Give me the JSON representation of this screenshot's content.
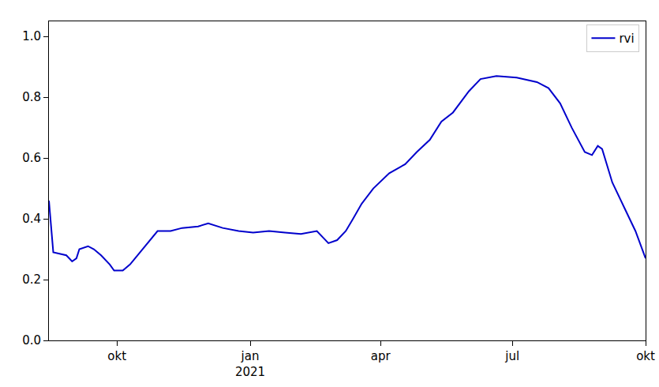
{
  "chart_data": {
    "type": "line",
    "x": [
      "2020-08-15",
      "2020-08-18",
      "2020-08-27",
      "2020-08-31",
      "2020-09-03",
      "2020-09-05",
      "2020-09-11",
      "2020-09-15",
      "2020-09-20",
      "2020-09-26",
      "2020-09-29",
      "2020-10-05",
      "2020-10-10",
      "2020-10-17",
      "2020-10-24",
      "2020-10-29",
      "2020-11-07",
      "2020-11-15",
      "2020-11-26",
      "2020-12-03",
      "2020-12-13",
      "2020-12-24",
      "2021-01-03",
      "2021-01-14",
      "2021-01-25",
      "2021-02-05",
      "2021-02-16",
      "2021-02-24",
      "2021-03-02",
      "2021-03-08",
      "2021-03-13",
      "2021-03-19",
      "2021-03-27",
      "2021-04-07",
      "2021-04-18",
      "2021-04-26",
      "2021-05-05",
      "2021-05-13",
      "2021-05-21",
      "2021-06-01",
      "2021-06-09",
      "2021-06-20",
      "2021-07-04",
      "2021-07-18",
      "2021-07-26",
      "2021-08-03",
      "2021-08-11",
      "2021-08-20",
      "2021-08-25",
      "2021-08-29",
      "2021-09-01",
      "2021-09-08",
      "2021-09-16",
      "2021-09-24",
      "2021-10-01"
    ],
    "series": [
      {
        "name": "rvi",
        "color": "#0000cc",
        "line_style": "solid",
        "values": [
          0.46,
          0.29,
          0.28,
          0.26,
          0.27,
          0.3,
          0.31,
          0.3,
          0.28,
          0.25,
          0.23,
          0.23,
          0.25,
          0.29,
          0.33,
          0.36,
          0.36,
          0.37,
          0.375,
          0.385,
          0.37,
          0.36,
          0.355,
          0.36,
          0.355,
          0.35,
          0.36,
          0.32,
          0.33,
          0.36,
          0.4,
          0.45,
          0.5,
          0.55,
          0.58,
          0.62,
          0.66,
          0.72,
          0.75,
          0.82,
          0.86,
          0.87,
          0.865,
          0.85,
          0.83,
          0.78,
          0.7,
          0.62,
          0.61,
          0.64,
          0.63,
          0.52,
          0.44,
          0.36,
          0.27
        ]
      }
    ],
    "xlim": [
      "2020-08-15",
      "2021-10-01"
    ],
    "xticks": [
      {
        "value": "2020-10-01",
        "label": "okt"
      },
      {
        "value": "2021-01-01",
        "label": "jan\n2021"
      },
      {
        "value": "2021-04-01",
        "label": "apr"
      },
      {
        "value": "2021-07-01",
        "label": "jul"
      },
      {
        "value": "2021-10-01",
        "label": "okt"
      }
    ],
    "ylim": [
      0,
      1.05
    ],
    "yticks": [
      {
        "value": 0,
        "label": "0.0"
      },
      0.2,
      0.4,
      0.6,
      0.8,
      {
        "value": 1,
        "label": "1.0"
      }
    ],
    "grid": false,
    "legend": "upper right"
  }
}
